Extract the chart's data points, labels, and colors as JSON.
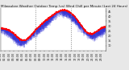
{
  "title": "Milwaukee Weather Outdoor Temp (vs) Wind Chill per Minute (Last 24 Hours)",
  "bg_color": "#e8e8e8",
  "plot_bg_color": "#ffffff",
  "line1_color": "#ff0000",
  "line2_color": "#0000cc",
  "vline_color": "#888888",
  "ylim": [
    5,
    48
  ],
  "xlim": [
    0,
    1440
  ],
  "vlines": [
    480,
    960
  ],
  "title_fontsize": 3.0,
  "tick_fontsize": 2.5
}
